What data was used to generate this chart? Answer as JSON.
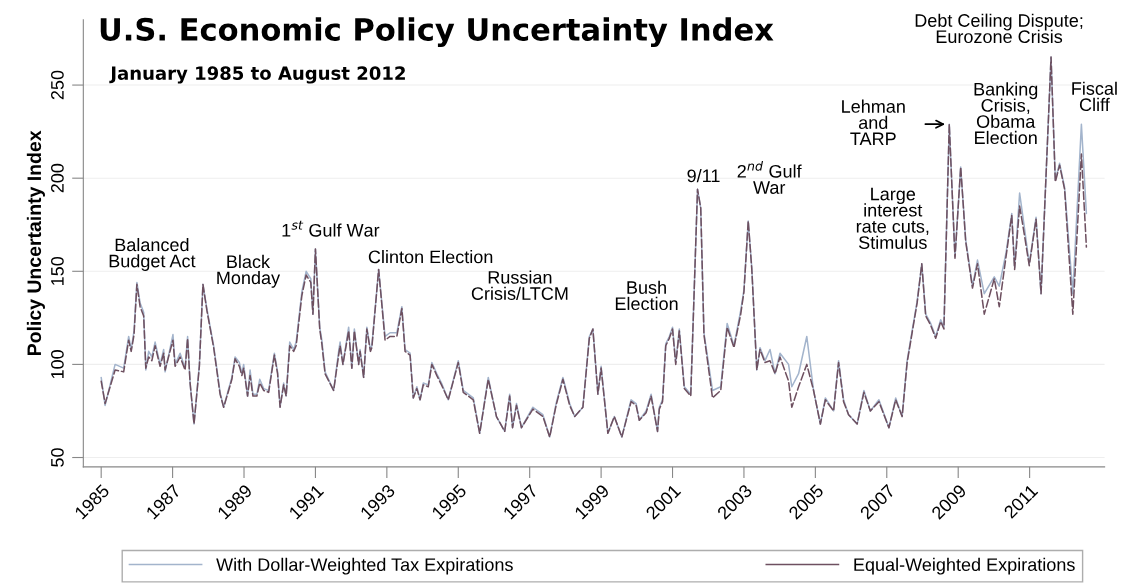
{
  "chart_data": {
    "type": "line",
    "title": "U.S. Economic Policy Uncertainty Index",
    "subtitle": "January 1985 to August 2012",
    "ylabel": "Policy Uncertainty Index",
    "x": [
      1985.0,
      1985.11,
      1985.39,
      1985.63,
      1985.77,
      1985.84,
      1985.92,
      1986.0,
      1986.09,
      1986.19,
      1986.25,
      1986.33,
      1986.42,
      1986.51,
      1986.65,
      1986.75,
      1986.79,
      1987.01,
      1987.07,
      1987.21,
      1987.35,
      1987.42,
      1987.49,
      1987.6,
      1987.75,
      1987.85,
      1987.96,
      1988.15,
      1988.33,
      1988.43,
      1988.57,
      1988.66,
      1988.75,
      1988.87,
      1988.94,
      1988.99,
      1989.1,
      1989.17,
      1989.25,
      1989.36,
      1989.44,
      1989.55,
      1989.69,
      1989.85,
      1989.94,
      1990.01,
      1990.11,
      1990.18,
      1990.28,
      1990.39,
      1990.46,
      1990.62,
      1990.74,
      1990.87,
      1990.93,
      1991.0,
      1991.12,
      1991.18,
      1991.27,
      1991.51,
      1991.65,
      1991.69,
      1991.77,
      1991.93,
      1992.02,
      1992.09,
      1992.21,
      1992.25,
      1992.35,
      1992.44,
      1992.54,
      1992.58,
      1992.77,
      1992.95,
      1993.09,
      1993.28,
      1993.42,
      1993.51,
      1993.65,
      1993.74,
      1993.84,
      1993.93,
      1994.02,
      1994.16,
      1994.26,
      1994.4,
      1994.53,
      1994.72,
      1995.0,
      1995.14,
      1995.42,
      1995.6,
      1995.84,
      1996.07,
      1996.3,
      1996.44,
      1996.52,
      1996.63,
      1996.77,
      1997.09,
      1997.37,
      1997.56,
      1997.74,
      1997.93,
      1998.12,
      1998.26,
      1998.49,
      1998.67,
      1998.77,
      1998.91,
      1999.0,
      1999.19,
      1999.37,
      1999.58,
      1999.84,
      1999.98,
      2000.07,
      2000.26,
      2000.4,
      2000.58,
      2000.63,
      2000.72,
      2000.81,
      2000.91,
      2001.0,
      2001.09,
      2001.19,
      2001.33,
      2001.51,
      2001.7,
      2001.79,
      2001.88,
      2002.12,
      2002.35,
      2002.53,
      2002.72,
      2002.91,
      2003.0,
      2003.12,
      2003.22,
      2003.36,
      2003.45,
      2003.59,
      2003.73,
      2003.87,
      2004.01,
      2004.25,
      2004.34,
      2004.53,
      2004.76,
      2004.95,
      2005.14,
      2005.28,
      2005.51,
      2005.65,
      2005.79,
      2005.93,
      2006.17,
      2006.36,
      2006.54,
      2006.78,
      2007.06,
      2007.25,
      2007.43,
      2007.57,
      2007.71,
      2007.85,
      2007.98,
      2008.09,
      2008.23,
      2008.37,
      2008.51,
      2008.6,
      2008.75,
      2008.91,
      2009.07,
      2009.21,
      2009.4,
      2009.54,
      2009.73,
      2010.01,
      2010.15,
      2010.34,
      2010.5,
      2010.58,
      2010.72,
      2010.85,
      2010.99,
      2011.18,
      2011.32,
      2011.6,
      2011.72,
      2011.84,
      2011.98,
      2012.21,
      2012.45,
      2012.59
    ],
    "series": [
      {
        "name": "With Dollar-Weighted Tax Expirations",
        "color": "#a3b4cc",
        "line_style": "solid",
        "values": [
          93,
          78,
          100,
          98,
          115,
          108,
          118,
          144,
          133,
          128,
          97,
          107,
          104,
          112,
          100,
          108,
          96,
          116,
          100,
          106,
          98,
          115,
          90,
          68,
          100,
          143,
          130,
          110,
          85,
          77,
          87,
          93,
          104,
          101,
          95,
          100,
          83,
          97,
          84,
          84,
          92,
          87,
          86,
          106,
          96,
          77,
          90,
          83,
          112,
          108,
          112,
          139,
          150,
          146,
          127,
          162,
          120,
          113,
          96,
          86,
          107,
          112,
          100,
          120,
          98,
          119,
          100,
          108,
          93,
          120,
          108,
          110,
          151,
          115,
          117,
          117,
          131,
          108,
          106,
          82,
          88,
          81,
          90,
          89,
          101,
          95,
          90,
          81,
          102,
          86,
          82,
          63,
          93,
          72,
          64,
          84,
          66,
          79,
          66,
          77,
          73,
          61,
          79,
          93,
          79,
          72,
          77,
          115,
          119,
          84,
          99,
          63,
          72,
          61,
          81,
          79,
          70,
          75,
          84,
          64,
          77,
          81,
          111,
          115,
          120,
          101,
          119,
          88,
          84,
          194,
          184,
          117,
          86,
          88,
          122,
          110,
          129,
          140,
          177,
          152,
          97,
          109,
          102,
          108,
          95,
          106,
          100,
          88,
          95,
          115,
          86,
          68,
          82,
          75,
          102,
          81,
          73,
          68,
          86,
          75,
          81,
          66,
          82,
          72,
          102,
          118,
          134,
          154,
          127,
          122,
          115,
          124,
          120,
          229,
          158,
          206,
          167,
          142,
          156,
          138,
          147,
          142,
          160,
          181,
          152,
          192,
          174,
          154,
          179,
          138,
          265,
          199,
          208,
          195,
          138,
          229,
          181
        ]
      },
      {
        "name": "Equal-Weighted Expirations",
        "color": "#6e5060",
        "line_style": "dashed",
        "values": [
          91,
          79,
          97,
          96,
          113,
          107,
          116,
          143,
          131,
          126,
          98,
          104,
          102,
          110,
          99,
          106,
          97,
          113,
          99,
          104,
          97,
          114,
          90,
          68,
          99,
          143,
          129,
          109,
          84,
          77,
          86,
          92,
          103,
          99,
          94,
          98,
          83,
          94,
          83,
          83,
          90,
          86,
          85,
          105,
          95,
          77,
          89,
          83,
          110,
          107,
          110,
          137,
          148,
          144,
          127,
          162,
          119,
          111,
          95,
          86,
          105,
          110,
          100,
          118,
          98,
          118,
          100,
          107,
          93,
          119,
          107,
          109,
          151,
          113,
          115,
          115,
          130,
          107,
          105,
          82,
          87,
          81,
          89,
          88,
          100,
          94,
          89,
          81,
          101,
          85,
          81,
          63,
          92,
          72,
          64,
          83,
          66,
          78,
          66,
          76,
          72,
          61,
          78,
          92,
          78,
          72,
          77,
          114,
          119,
          84,
          98,
          63,
          72,
          61,
          80,
          78,
          70,
          74,
          83,
          64,
          76,
          80,
          110,
          114,
          119,
          100,
          118,
          87,
          83,
          194,
          184,
          116,
          82,
          86,
          120,
          109,
          127,
          139,
          177,
          151,
          97,
          108,
          101,
          102,
          95,
          104,
          91,
          77,
          88,
          100,
          86,
          68,
          81,
          75,
          101,
          80,
          73,
          68,
          85,
          75,
          80,
          66,
          81,
          72,
          101,
          117,
          133,
          154,
          126,
          121,
          114,
          123,
          119,
          229,
          157,
          206,
          166,
          141,
          154,
          127,
          146,
          131,
          158,
          180,
          151,
          185,
          170,
          153,
          178,
          138,
          265,
          198,
          207,
          194,
          127,
          213,
          163
        ]
      }
    ],
    "xlim": [
      1984.5,
      2013.1
    ],
    "xticks": [
      1985,
      1987,
      1989,
      1991,
      1993,
      1995,
      1997,
      1999,
      2001,
      2003,
      2005,
      2007,
      2009,
      2011
    ],
    "ylim": [
      45,
      285
    ],
    "yticks": [
      50,
      100,
      150,
      200,
      250
    ],
    "grid": "y",
    "legend": "bottom",
    "annotations": [
      {
        "text": "Balanced\nBudget Act",
        "x": 1986.0,
        "y": 144
      },
      {
        "text": "Black\nMonday",
        "x": 1987.85,
        "y": 143
      },
      {
        "text": "1$^{st}$ Gulf War",
        "x": 1991.0,
        "y": 162
      },
      {
        "text": "Clinton Election",
        "x": 1992.77,
        "y": 151
      },
      {
        "text": "Russian\nCrisis/LTCM",
        "x": 1998.77,
        "y": 119
      },
      {
        "text": "Bush\nElection",
        "x": 2001.0,
        "y": 120
      },
      {
        "text": "9/11",
        "x": 2001.7,
        "y": 194
      },
      {
        "text": "2$^{nd}$ Gulf\nWar",
        "x": 2003.12,
        "y": 177
      },
      {
        "text": "Large\ninterest\nrate cuts,\nStimulus",
        "x": 2007.98,
        "y": 154
      },
      {
        "text": "Lehman\nand\nTARP",
        "x": 2008.75,
        "y": 229
      },
      {
        "text": "Banking\nCrisis,\nObama\nElection",
        "x": 2009.07,
        "y": 206
      },
      {
        "text": "Debt Ceiling Dispute;\nEurozone Crisis",
        "x": 2011.6,
        "y": 265
      },
      {
        "text": "Fiscal\nCliff",
        "x": 2012.45,
        "y": 229
      }
    ]
  }
}
